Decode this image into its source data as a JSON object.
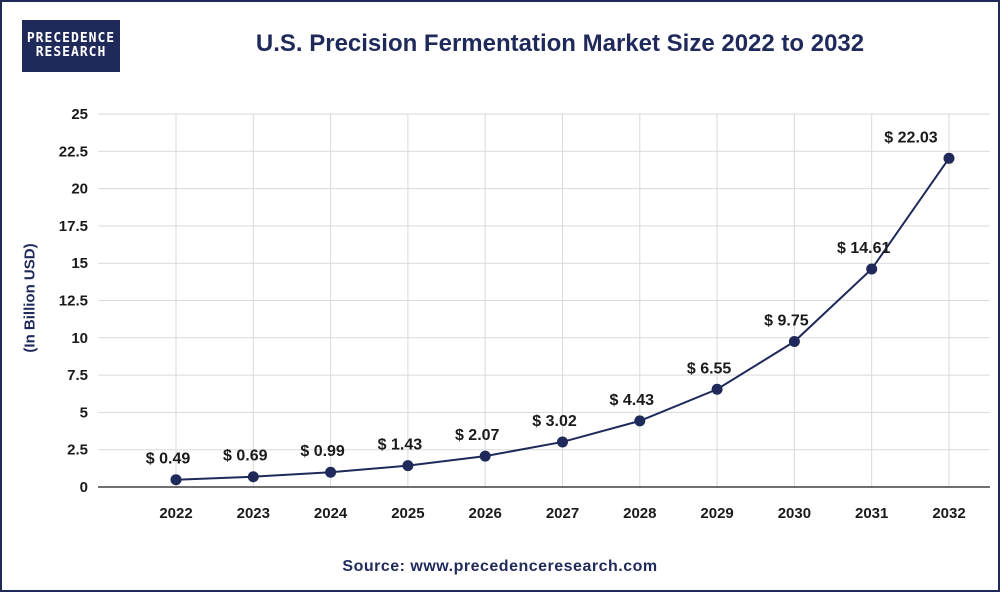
{
  "logo": {
    "line1": "PRECEDENCE",
    "line2": "RESEARCH"
  },
  "source": "Source: www.precedenceresearch.com",
  "colors": {
    "accent": "#1f2a5a",
    "grid": "#d9d9d9"
  },
  "chart_data": {
    "type": "line",
    "title": "U.S. Precision Fermentation Market Size 2022 to 2032",
    "xlabel": "",
    "ylabel": "(In Billion USD)",
    "categories": [
      "2022",
      "2023",
      "2024",
      "2025",
      "2026",
      "2027",
      "2028",
      "2029",
      "2030",
      "2031",
      "2032"
    ],
    "series": [
      {
        "values": [
          0.49,
          0.69,
          0.99,
          1.43,
          2.07,
          3.02,
          4.43,
          6.55,
          9.75,
          14.61,
          22.03
        ]
      }
    ],
    "data_labels": [
      "$ 0.49",
      "$ 0.69",
      "$ 0.99",
      "$ 1.43",
      "$ 2.07",
      "$ 3.02",
      "$ 4.43",
      "$ 6.55",
      "$ 9.75",
      "$ 14.61",
      "$ 22.03"
    ],
    "ylim": [
      0,
      25
    ],
    "yticks": [
      "0",
      "2.5",
      "5",
      "7.5",
      "10",
      "12.5",
      "15",
      "17.5",
      "20",
      "22.5",
      "25"
    ],
    "grid": true,
    "legend": "none"
  }
}
